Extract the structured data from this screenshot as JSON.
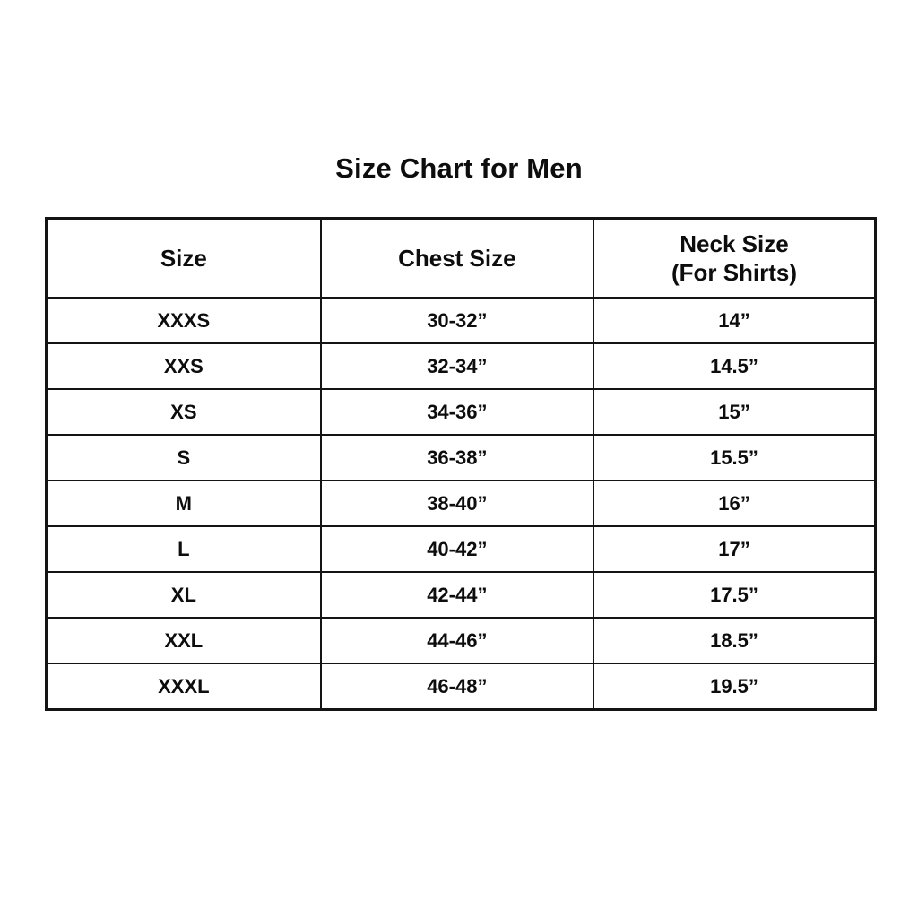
{
  "chart_data": {
    "type": "table",
    "title": "Size Chart for Men",
    "columns": [
      {
        "label": "Size",
        "sublabel": ""
      },
      {
        "label": "Chest Size",
        "sublabel": ""
      },
      {
        "label": "Neck Size",
        "sublabel": "(For Shirts)"
      }
    ],
    "rows": [
      [
        "XXXS",
        "30-32”",
        "14”"
      ],
      [
        "XXS",
        "32-34”",
        "14.5”"
      ],
      [
        "XS",
        "34-36”",
        "15”"
      ],
      [
        "S",
        "36-38”",
        "15.5”"
      ],
      [
        "M",
        "38-40”",
        "16”"
      ],
      [
        "L",
        "40-42”",
        "17”"
      ],
      [
        "XL",
        "42-44”",
        "17.5”"
      ],
      [
        "XXL",
        "44-46”",
        "18.5”"
      ],
      [
        "XXXL",
        "46-48”",
        "19.5”"
      ]
    ],
    "layout": {
      "text_color": "#0d0d0d",
      "border_color": "#141414",
      "background_color": "#ffffff"
    }
  }
}
